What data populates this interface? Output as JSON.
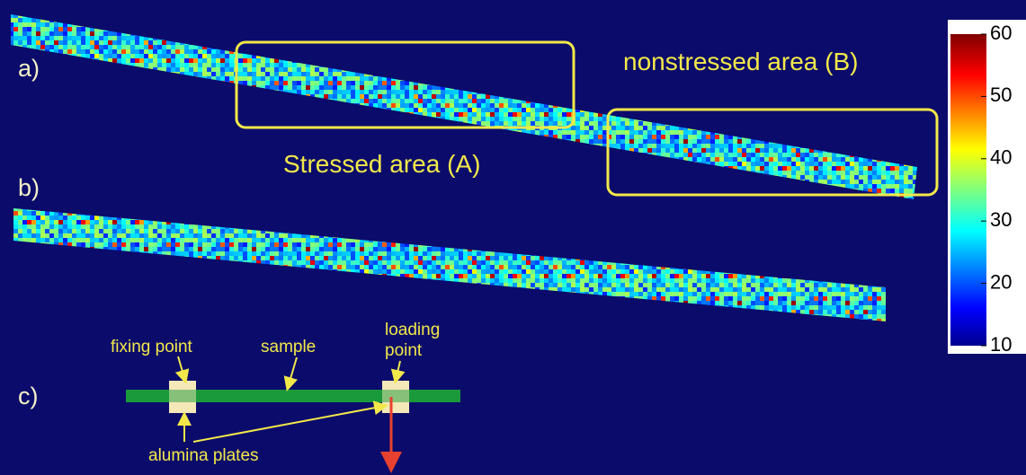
{
  "panels": {
    "a": {
      "label": "a)",
      "stressed": "Stressed area (A)",
      "nonstressed": "nonstressed area (B)"
    },
    "b": {
      "label": "b)"
    },
    "c": {
      "label": "c)",
      "fixing": "fixing point",
      "sample": "sample",
      "loading": [
        "loading",
        "point"
      ],
      "plates": "alumina plates"
    }
  },
  "colorbar": {
    "ticks": [
      60,
      50,
      40,
      30,
      20,
      10
    ],
    "lim": [
      10,
      60
    ]
  }
}
